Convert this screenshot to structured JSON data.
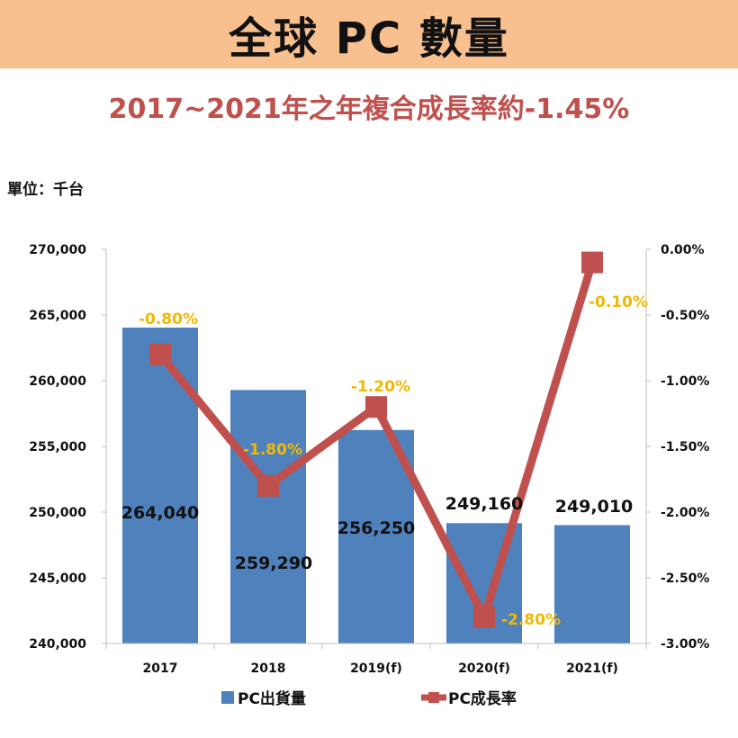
{
  "header": {
    "title": "全球 PC 數量",
    "subtitle": "2017~2021年之年複合成長率約-1.45%",
    "unit": "單位：千台"
  },
  "colors": {
    "banner": "#f9c08f",
    "bar": "#4f81bd",
    "line": "#c0504d",
    "rate_label": "#f2b800",
    "subtitle": "#c0504d"
  },
  "chart_data": {
    "type": "bar+line",
    "categories": [
      "2017",
      "2018",
      "2019(f)",
      "2020(f)",
      "2021(f)"
    ],
    "bars": {
      "name": "PC出貨量",
      "values": [
        264040,
        259290,
        256250,
        249160,
        249010
      ],
      "labels": [
        "264,040",
        "259,290",
        "256,250",
        "249,160",
        "249,010"
      ]
    },
    "line": {
      "name": "PC成長率",
      "values": [
        -0.8,
        -1.8,
        -1.2,
        -2.8,
        -0.1
      ],
      "labels": [
        "-0.80%",
        "-1.80%",
        "-1.20%",
        "-2.80%",
        "-0.10%"
      ]
    },
    "y_left": {
      "range": [
        240000,
        270000
      ],
      "ticks": [
        240000,
        245000,
        250000,
        255000,
        260000,
        265000,
        270000
      ],
      "tick_labels": [
        "240,000",
        "245,000",
        "250,000",
        "255,000",
        "260,000",
        "265,000",
        "270,000"
      ]
    },
    "y_right": {
      "range": [
        -3.0,
        0.0
      ],
      "ticks": [
        -3.0,
        -2.5,
        -2.0,
        -1.5,
        -1.0,
        -0.5,
        0.0
      ],
      "tick_labels": [
        "-3.00%",
        "-2.50%",
        "-2.00%",
        "-1.50%",
        "-1.00%",
        "-0.50%",
        "0.00%"
      ]
    },
    "grid": false,
    "legend_placement": "bottom"
  }
}
